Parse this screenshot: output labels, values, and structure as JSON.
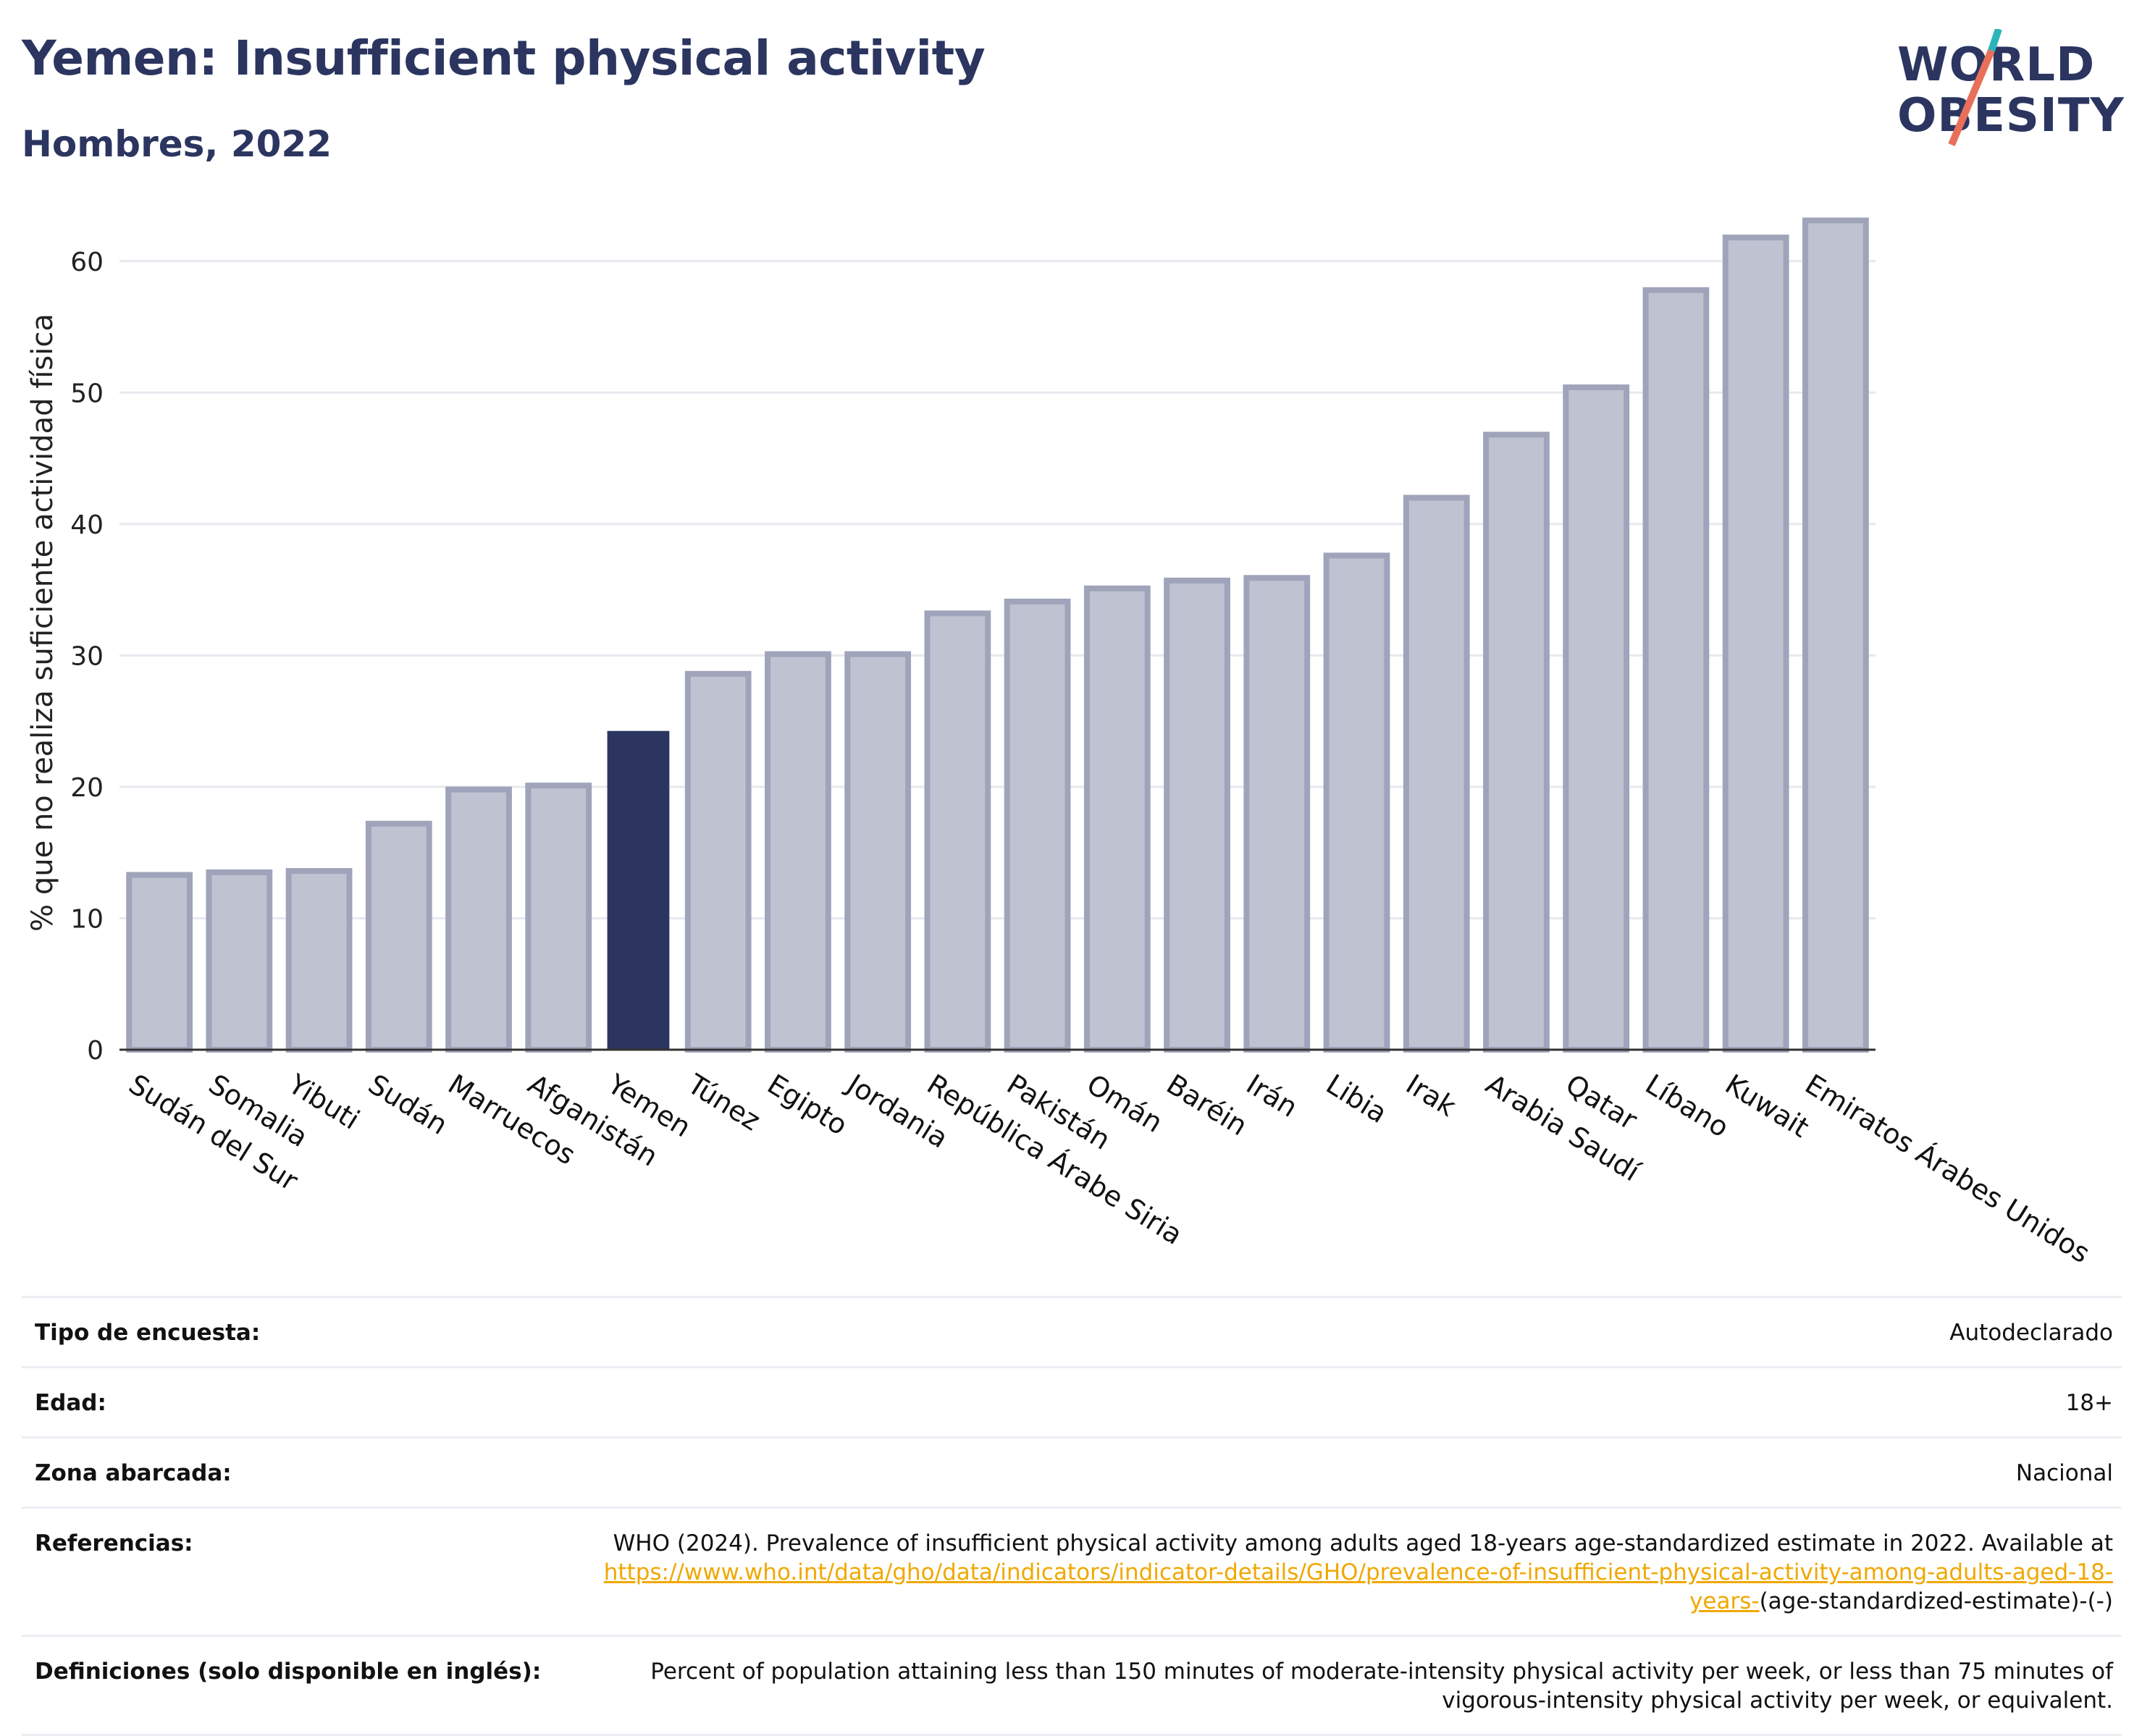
{
  "title": "Yemen: Insufficient physical activity",
  "subtitle": "Hombres, 2022",
  "logo": {
    "line1": "WORLD",
    "line2": "OBESITY"
  },
  "colors": {
    "highlight": "#2b3560",
    "bar": "#bfc2d0",
    "bar_stroke": "#9fa4bb",
    "title": "#2b3560",
    "logo_teal": "#2bb5b8",
    "logo_coral": "#e8705a"
  },
  "chart_data": {
    "type": "bar",
    "ylabel": "% que no realiza suficiente actividad física",
    "ylim": [
      0,
      65
    ],
    "yticks": [
      0,
      10,
      20,
      30,
      40,
      50,
      60
    ],
    "grid": true,
    "highlight": "Yemen",
    "categories": [
      "Sudán del Sur",
      "Somalia",
      "Yibuti",
      "Sudán",
      "Marruecos",
      "Afganistán",
      "Yemen",
      "Túnez",
      "Egipto",
      "Jordania",
      "República Árabe Siria",
      "Pakistán",
      "Omán",
      "Baréin",
      "Irán",
      "Libia",
      "Irak",
      "Arabia Saudí",
      "Qatar",
      "Líbano",
      "Kuwait",
      "Emiratos Árabes Unidos"
    ],
    "values": [
      13.3,
      13.5,
      13.6,
      17.2,
      19.8,
      20.1,
      24.2,
      28.6,
      30.1,
      30.1,
      33.2,
      34.1,
      35.1,
      35.7,
      35.9,
      37.6,
      42.0,
      46.8,
      50.4,
      57.8,
      61.8,
      63.1
    ]
  },
  "table": [
    {
      "label": "Tipo de encuesta:",
      "value": "Autodeclarado"
    },
    {
      "label": "Edad:",
      "value": "18+"
    },
    {
      "label": "Zona abarcada:",
      "value": "Nacional"
    },
    {
      "label": "Referencias:",
      "value": "WHO (2024). Prevalence of insufficient physical activity among adults aged 18-years age-standardized estimate in 2022. Available at",
      "link": "https://www.who.int/data/gho/data/indicators/indicator-details/GHO/prevalence-of-insufficient-physical-activity-among-adults-aged-18-years-",
      "suffix": "(age-standardized-estimate)-(-)"
    },
    {
      "label": "Definiciones (solo disponible en inglés):",
      "value": "Percent of population attaining less than 150 minutes of moderate-intensity physical activity per week, or less than 75 minutes of vigorous-intensity physical activity per week, or equivalent."
    }
  ]
}
